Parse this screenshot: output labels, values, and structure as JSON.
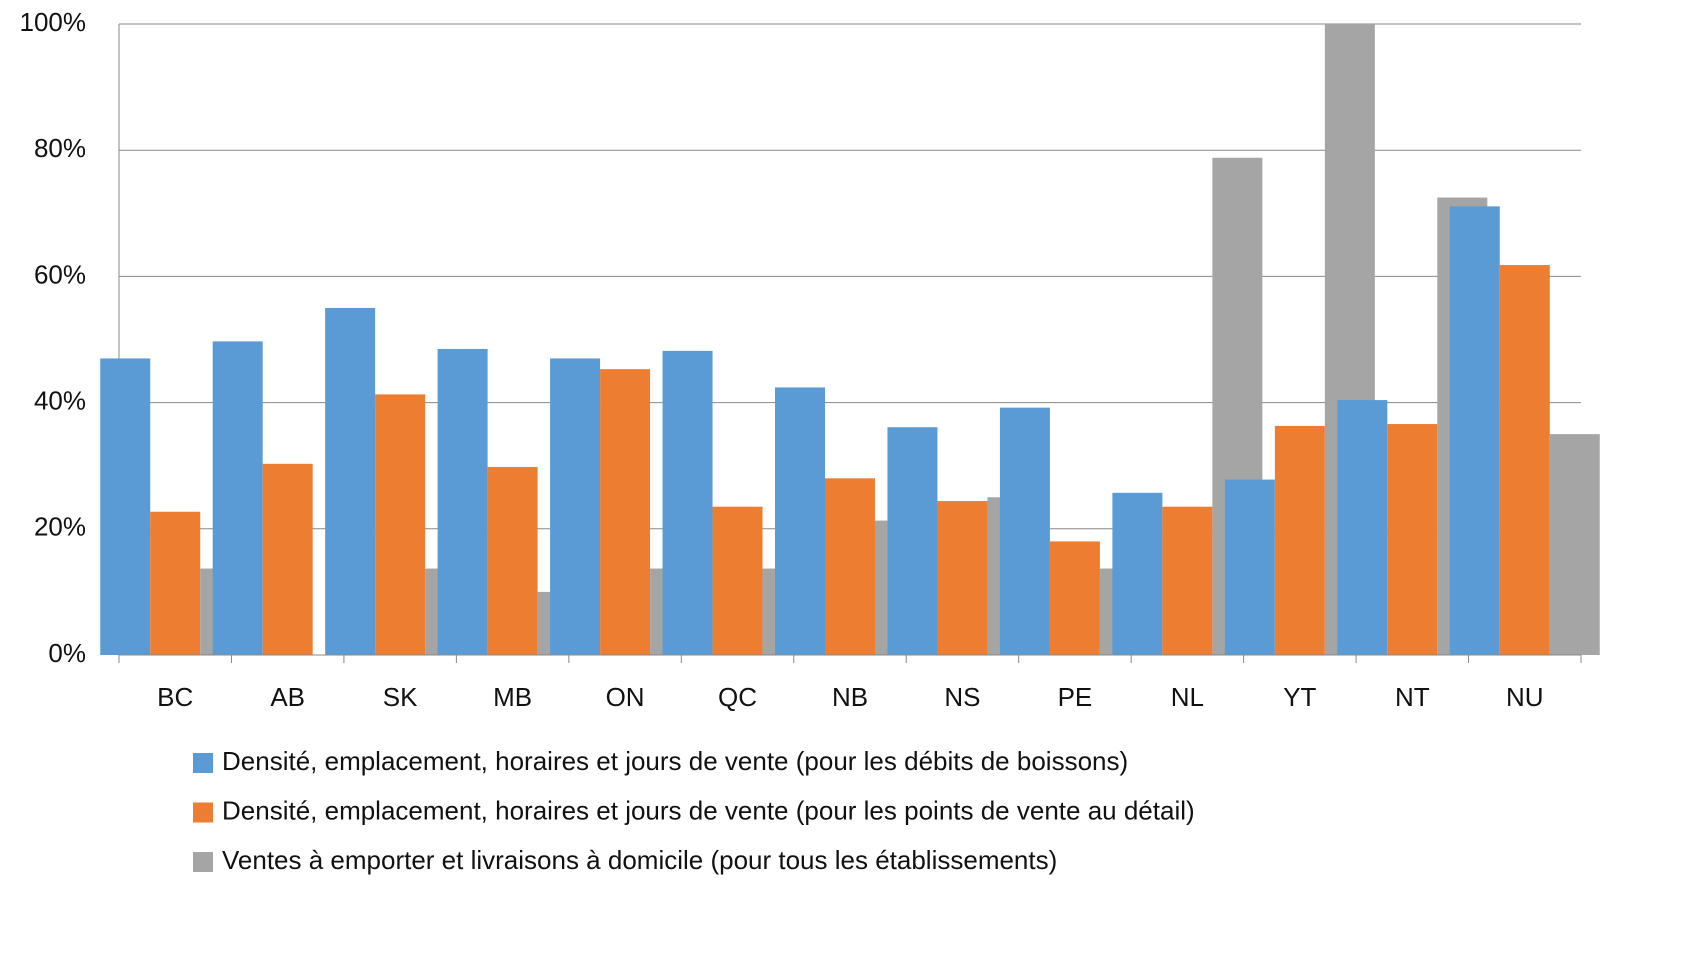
{
  "chart_data": {
    "type": "bar",
    "categories": [
      "BC",
      "AB",
      "SK",
      "MB",
      "ON",
      "QC",
      "NB",
      "NS",
      "PE",
      "NL",
      "YT",
      "NT",
      "NU"
    ],
    "series": [
      {
        "name": "Densité, emplacement, horaires et jours de vente (pour les débits de boissons)",
        "color": "#5b9bd5",
        "values": [
          47,
          49.7,
          55,
          48.5,
          47,
          48.2,
          42.4,
          36.1,
          39.2,
          25.7,
          27.8,
          40.4,
          71.1
        ]
      },
      {
        "name": "Densité, emplacement, horaires et jours de vente (pour les points de vente au détail)",
        "color": "#ed7d31",
        "values": [
          22.7,
          30.3,
          41.3,
          29.8,
          45.3,
          23.5,
          28,
          24.4,
          18,
          23.5,
          36.3,
          36.6,
          61.8
        ]
      },
      {
        "name": "Ventes à emporter et livraisons à domicile (pour tous les établissements)",
        "color": "#a5a5a5",
        "values": [
          13.7,
          0,
          13.7,
          10,
          13.7,
          13.7,
          21.3,
          25,
          13.7,
          78.8,
          100,
          72.5,
          35
        ]
      }
    ],
    "ylim": [
      0,
      100
    ],
    "yticks": [
      {
        "value": 0,
        "label": "0%"
      },
      {
        "value": 20,
        "label": "20%"
      },
      {
        "value": 40,
        "label": "40%"
      },
      {
        "value": 60,
        "label": "60%"
      },
      {
        "value": 80,
        "label": "80%"
      },
      {
        "value": 100,
        "label": "100%"
      }
    ],
    "grid": true
  }
}
